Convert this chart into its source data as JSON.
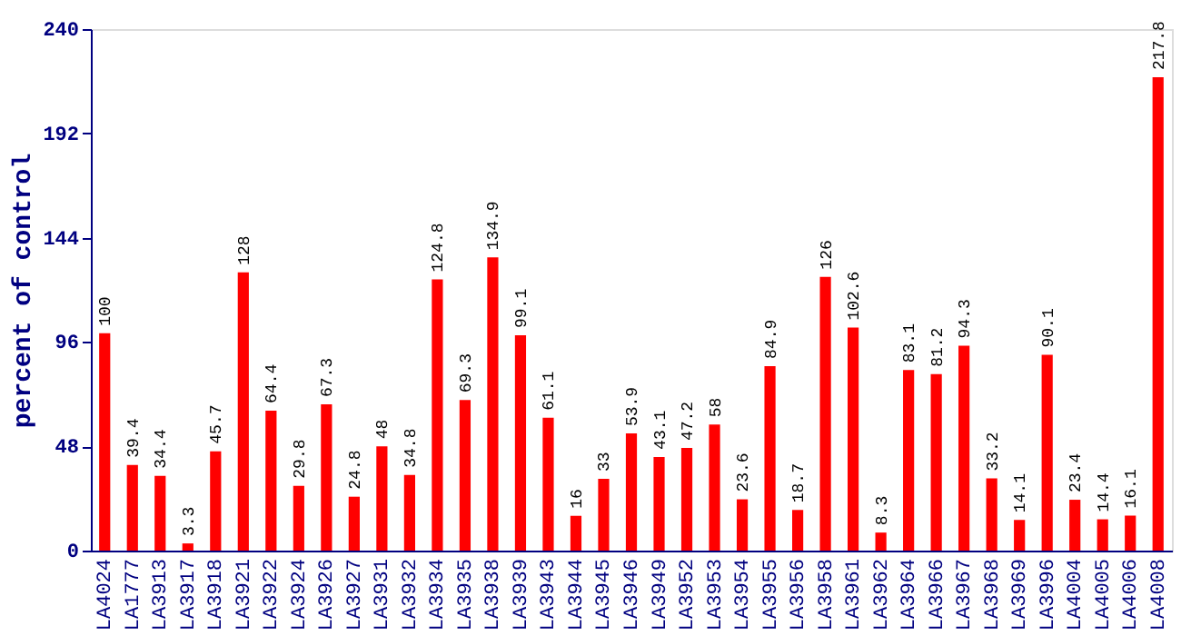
{
  "chart_data": {
    "type": "bar",
    "ylabel": "percent of control",
    "categories": [
      "LA4024",
      "LA1777",
      "LA3913",
      "LA3917",
      "LA3918",
      "LA3921",
      "LA3922",
      "LA3924",
      "LA3926",
      "LA3927",
      "LA3931",
      "LA3932",
      "LA3934",
      "LA3935",
      "LA3938",
      "LA3939",
      "LA3943",
      "LA3944",
      "LA3945",
      "LA3946",
      "LA3949",
      "LA3952",
      "LA3953",
      "LA3954",
      "LA3955",
      "LA3956",
      "LA3958",
      "LA3961",
      "LA3962",
      "LA3964",
      "LA3966",
      "LA3967",
      "LA3968",
      "LA3969",
      "LA3996",
      "LA4004",
      "LA4005",
      "LA4006",
      "LA4008"
    ],
    "values": [
      100,
      39.4,
      34.4,
      3.3,
      45.7,
      128,
      64.4,
      29.8,
      67.3,
      24.8,
      48,
      34.8,
      124.8,
      69.3,
      134.9,
      99.1,
      61.1,
      16,
      33,
      53.9,
      43.1,
      47.2,
      58,
      23.6,
      84.9,
      18.7,
      126,
      102.6,
      8.3,
      83.1,
      81.2,
      94.3,
      33.2,
      14.1,
      90.1,
      23.4,
      14.4,
      16.1,
      217.8
    ],
    "color": "#ff0000",
    "ylim": [
      0,
      240
    ],
    "yticks": [
      0,
      48,
      96,
      144,
      192,
      240
    ],
    "grid": false,
    "data_labels": true
  }
}
